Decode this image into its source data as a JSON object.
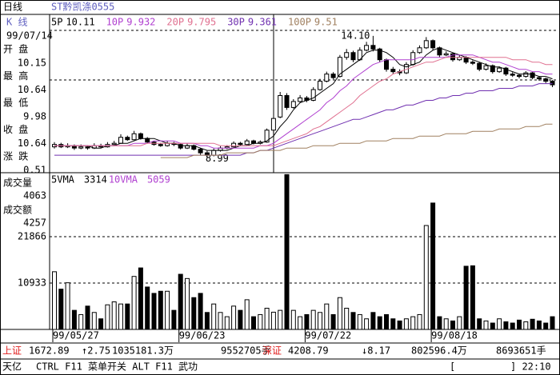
{
  "header": {
    "period": "日线",
    "security": "ST黔凯涤0555",
    "k_label": "K  线"
  },
  "cursor": {
    "date": "99/07/14",
    "fields": [
      {
        "label": "开  盘",
        "value": "10.15"
      },
      {
        "label": "最  高",
        "value": "10.64"
      },
      {
        "label": "最  低",
        "value": "9.98"
      },
      {
        "label": "收  盘",
        "value": "10.64"
      },
      {
        "label": "涨  跌",
        "value": "0.51"
      }
    ],
    "volume_label": "成交量",
    "volume": "4063",
    "amount_label": "成交额",
    "amount": "4257"
  },
  "chart_data": {
    "type": "candlestick",
    "categories": [
      "99/05/27",
      null,
      null,
      null,
      null,
      null,
      null,
      null,
      null,
      null,
      null,
      null,
      null,
      null,
      null,
      null,
      null,
      null,
      null,
      "99/06/23",
      null,
      null,
      null,
      null,
      null,
      null,
      null,
      null,
      null,
      null,
      null,
      null,
      null,
      null,
      null,
      null,
      null,
      null,
      "99/07/22",
      null,
      null,
      null,
      null,
      null,
      null,
      null,
      null,
      null,
      null,
      null,
      null,
      null,
      null,
      null,
      null,
      null,
      null,
      "99/08/18",
      null,
      null,
      null,
      null,
      null,
      null,
      null,
      null,
      null,
      null,
      null,
      null,
      null,
      null,
      null,
      null,
      null,
      null
    ],
    "ohlc": [
      [
        9.45,
        9.65,
        9.38,
        9.55
      ],
      [
        9.55,
        9.62,
        9.4,
        9.45
      ],
      [
        9.45,
        9.6,
        9.4,
        9.5
      ],
      [
        9.5,
        9.55,
        9.32,
        9.4
      ],
      [
        9.4,
        9.55,
        9.35,
        9.45
      ],
      [
        9.45,
        9.52,
        9.33,
        9.4
      ],
      [
        9.4,
        9.6,
        9.36,
        9.5
      ],
      [
        9.5,
        9.58,
        9.4,
        9.45
      ],
      [
        9.45,
        9.65,
        9.42,
        9.55
      ],
      [
        9.55,
        9.7,
        9.5,
        9.6
      ],
      [
        9.6,
        9.98,
        9.58,
        9.85
      ],
      [
        9.85,
        9.92,
        9.7,
        9.75
      ],
      [
        9.75,
        10.12,
        9.72,
        10.0
      ],
      [
        10.0,
        10.05,
        9.75,
        9.8
      ],
      [
        9.8,
        9.86,
        9.6,
        9.65
      ],
      [
        9.65,
        9.7,
        9.5,
        9.55
      ],
      [
        9.55,
        9.62,
        9.45,
        9.5
      ],
      [
        9.5,
        9.7,
        9.46,
        9.6
      ],
      [
        9.6,
        9.66,
        9.48,
        9.55
      ],
      [
        9.55,
        9.6,
        9.34,
        9.4
      ],
      [
        9.4,
        9.6,
        9.36,
        9.5
      ],
      [
        9.5,
        9.55,
        9.3,
        9.35
      ],
      [
        9.35,
        9.4,
        9.12,
        9.2
      ],
      [
        9.2,
        9.28,
        8.99,
        9.1
      ],
      [
        9.1,
        9.38,
        9.05,
        9.3
      ],
      [
        9.3,
        9.48,
        9.25,
        9.4
      ],
      [
        9.4,
        9.52,
        9.35,
        9.45
      ],
      [
        9.45,
        9.68,
        9.42,
        9.6
      ],
      [
        9.6,
        9.66,
        9.48,
        9.55
      ],
      [
        9.55,
        9.78,
        9.52,
        9.7
      ],
      [
        9.7,
        9.75,
        9.55,
        9.6
      ],
      [
        9.6,
        9.72,
        9.55,
        9.65
      ],
      [
        9.65,
        10.22,
        9.62,
        10.15
      ],
      [
        10.15,
        10.64,
        9.98,
        10.64
      ],
      [
        10.7,
        11.75,
        10.65,
        11.6
      ],
      [
        11.6,
        11.7,
        11.0,
        11.1
      ],
      [
        11.1,
        11.45,
        11.05,
        11.35
      ],
      [
        11.35,
        11.62,
        11.3,
        11.5
      ],
      [
        11.5,
        11.58,
        11.32,
        11.4
      ],
      [
        11.4,
        11.95,
        11.36,
        11.85
      ],
      [
        11.85,
        12.3,
        11.8,
        12.2
      ],
      [
        12.2,
        12.6,
        12.15,
        12.5
      ],
      [
        12.5,
        12.58,
        12.28,
        12.35
      ],
      [
        12.4,
        13.3,
        12.35,
        13.2
      ],
      [
        13.2,
        13.55,
        13.1,
        13.4
      ],
      [
        13.4,
        13.48,
        13.0,
        13.1
      ],
      [
        13.1,
        13.62,
        13.05,
        13.5
      ],
      [
        13.5,
        13.85,
        13.45,
        13.7
      ],
      [
        13.7,
        14.1,
        13.45,
        13.55
      ],
      [
        13.55,
        13.6,
        13.0,
        13.1
      ],
      [
        13.1,
        13.15,
        12.6,
        12.7
      ],
      [
        12.7,
        12.8,
        12.5,
        12.6
      ],
      [
        12.6,
        12.7,
        12.45,
        12.55
      ],
      [
        12.55,
        13.0,
        12.5,
        12.9
      ],
      [
        12.9,
        13.5,
        12.85,
        13.4
      ],
      [
        13.4,
        13.7,
        13.35,
        13.6
      ],
      [
        13.6,
        14.05,
        13.55,
        13.9
      ],
      [
        13.9,
        13.95,
        13.5,
        13.6
      ],
      [
        13.6,
        13.65,
        13.2,
        13.3
      ],
      [
        13.3,
        13.45,
        13.25,
        13.35
      ],
      [
        13.35,
        13.4,
        13.02,
        13.1
      ],
      [
        13.1,
        13.3,
        13.05,
        13.2
      ],
      [
        13.2,
        13.25,
        12.92,
        13.0
      ],
      [
        13.0,
        13.08,
        12.88,
        12.95
      ],
      [
        12.95,
        13.0,
        12.62,
        12.7
      ],
      [
        12.7,
        12.95,
        12.65,
        12.85
      ],
      [
        12.85,
        12.9,
        12.52,
        12.6
      ],
      [
        12.6,
        12.82,
        12.55,
        12.75
      ],
      [
        12.75,
        12.8,
        12.42,
        12.5
      ],
      [
        12.5,
        12.58,
        12.38,
        12.45
      ],
      [
        12.45,
        12.5,
        12.32,
        12.4
      ],
      [
        12.4,
        12.62,
        12.35,
        12.55
      ],
      [
        12.55,
        12.6,
        12.28,
        12.35
      ],
      [
        12.35,
        12.42,
        12.22,
        12.3
      ],
      [
        12.3,
        12.35,
        12.12,
        12.2
      ],
      [
        12.2,
        12.25,
        11.95,
        12.05
      ]
    ],
    "ylim": [
      8.4,
      15.0
    ],
    "high_label": "14.10",
    "low_label": "8.99",
    "series": [
      {
        "name": "5P",
        "legend_value": "10.11",
        "color": "#000000",
        "values": [
          9.5,
          9.5,
          9.5,
          9.5,
          9.5,
          9.5,
          9.4,
          9.4,
          9.5,
          9.5,
          9.6,
          9.6,
          9.7,
          9.8,
          9.8,
          9.8,
          9.7,
          9.6,
          9.6,
          9.5,
          9.5,
          9.5,
          9.4,
          9.3,
          9.3,
          9.3,
          9.3,
          9.4,
          9.5,
          9.5,
          9.6,
          9.6,
          9.7,
          9.9,
          10.3,
          10.6,
          11.0,
          11.3,
          11.4,
          11.5,
          11.7,
          11.9,
          12.1,
          12.5,
          12.7,
          12.9,
          13.1,
          13.4,
          13.5,
          13.5,
          13.4,
          13.2,
          12.9,
          12.8,
          12.9,
          13.0,
          13.3,
          13.5,
          13.6,
          13.5,
          13.4,
          13.3,
          13.2,
          13.1,
          13.0,
          12.9,
          12.8,
          12.8,
          12.7,
          12.6,
          12.5,
          12.5,
          12.5,
          12.4,
          12.4,
          12.3
        ]
      },
      {
        "name": "10P",
        "legend_value": "9.932",
        "color": "#b040d0",
        "values": [
          9.5,
          9.5,
          9.5,
          9.5,
          9.5,
          9.5,
          9.5,
          9.5,
          9.5,
          9.5,
          9.5,
          9.5,
          9.6,
          9.6,
          9.6,
          9.7,
          9.7,
          9.7,
          9.7,
          9.6,
          9.6,
          9.6,
          9.5,
          9.5,
          9.4,
          9.4,
          9.4,
          9.4,
          9.4,
          9.4,
          9.4,
          9.5,
          9.5,
          9.6,
          9.8,
          10.0,
          10.2,
          10.4,
          10.6,
          10.8,
          11.0,
          11.3,
          11.5,
          11.8,
          12.0,
          12.3,
          12.5,
          12.7,
          12.9,
          13.0,
          13.1,
          13.1,
          13.1,
          13.1,
          13.1,
          13.2,
          13.2,
          13.2,
          13.2,
          13.2,
          13.3,
          13.3,
          13.3,
          13.3,
          13.2,
          13.1,
          13.0,
          13.0,
          12.9,
          12.8,
          12.7,
          12.7,
          12.6,
          12.6,
          12.5,
          12.5
        ]
      },
      {
        "name": "20P",
        "legend_value": "9.795",
        "color": "#e07090",
        "values": [
          9.5,
          9.5,
          9.5,
          9.5,
          9.5,
          9.5,
          9.5,
          9.5,
          9.5,
          9.5,
          9.5,
          9.5,
          9.5,
          9.5,
          9.6,
          9.6,
          9.6,
          9.6,
          9.6,
          9.6,
          9.6,
          9.6,
          9.6,
          9.6,
          9.6,
          9.5,
          9.5,
          9.5,
          9.5,
          9.5,
          9.5,
          9.5,
          9.5,
          9.5,
          9.6,
          9.7,
          9.8,
          9.9,
          10.0,
          10.2,
          10.3,
          10.5,
          10.7,
          10.9,
          11.1,
          11.3,
          11.6,
          11.8,
          12.0,
          12.2,
          12.3,
          12.5,
          12.6,
          12.7,
          12.8,
          12.9,
          13.0,
          13.0,
          13.1,
          13.2,
          13.2,
          13.2,
          13.2,
          13.2,
          13.2,
          13.2,
          13.2,
          13.2,
          13.2,
          13.1,
          13.1,
          13.1,
          13.0,
          13.0,
          12.9,
          12.9
        ]
      },
      {
        "name": "30P",
        "legend_value": "9.361",
        "color": "#7030b0",
        "values": [
          9.1,
          9.1,
          9.1,
          9.1,
          9.1,
          9.1,
          9.1,
          9.1,
          9.1,
          9.1,
          9.1,
          9.1,
          9.1,
          9.1,
          9.1,
          9.1,
          9.1,
          9.1,
          9.1,
          9.1,
          9.1,
          9.1,
          9.1,
          9.1,
          9.1,
          9.1,
          9.1,
          9.1,
          9.1,
          9.2,
          9.2,
          9.3,
          9.3,
          9.4,
          9.5,
          9.6,
          9.7,
          9.8,
          9.9,
          10.0,
          10.1,
          10.2,
          10.3,
          10.4,
          10.5,
          10.6,
          10.6,
          10.7,
          10.8,
          10.9,
          11.0,
          11.0,
          11.1,
          11.2,
          11.2,
          11.3,
          11.4,
          11.4,
          11.5,
          11.5,
          11.6,
          11.6,
          11.7,
          11.7,
          11.8,
          11.8,
          11.8,
          11.9,
          11.9,
          11.9,
          12.0,
          12.0,
          12.0,
          12.1,
          12.1,
          12.1
        ]
      },
      {
        "name": "100P",
        "legend_value": "9.51",
        "color": "#a08060",
        "values": [
          null,
          null,
          null,
          null,
          null,
          null,
          null,
          null,
          null,
          null,
          null,
          null,
          null,
          null,
          null,
          null,
          9.0,
          9.0,
          9.0,
          9.0,
          9.0,
          9.1,
          9.1,
          9.1,
          9.1,
          9.1,
          9.2,
          9.2,
          9.2,
          9.2,
          9.2,
          9.3,
          9.3,
          9.3,
          9.3,
          9.4,
          9.4,
          9.4,
          9.4,
          9.5,
          9.5,
          9.5,
          9.5,
          9.6,
          9.6,
          9.6,
          9.6,
          9.7,
          9.7,
          9.7,
          9.7,
          9.8,
          9.8,
          9.8,
          9.8,
          9.9,
          9.9,
          9.9,
          9.9,
          10.0,
          10.0,
          10.0,
          10.0,
          10.1,
          10.1,
          10.1,
          10.1,
          10.2,
          10.2,
          10.2,
          10.2,
          10.3,
          10.3,
          10.3,
          10.4,
          10.4
        ]
      }
    ],
    "volume": {
      "values": [
        13600,
        9500,
        11000,
        4500,
        3500,
        5500,
        4000,
        2500,
        5800,
        6500,
        6000,
        6000,
        12500,
        14500,
        10000,
        8500,
        9000,
        9000,
        4500,
        13000,
        12000,
        7500,
        8500,
        4000,
        6000,
        4000,
        3000,
        5500,
        4500,
        7000,
        3000,
        3500,
        5000,
        4063,
        4500,
        36500,
        4500,
        3000,
        3500,
        4500,
        4000,
        6000,
        3500,
        7500,
        5000,
        4000,
        3500,
        2500,
        4000,
        3000,
        3500,
        2500,
        2000,
        2500,
        3000,
        3500,
        24500,
        29800,
        3000,
        2500,
        2000,
        3000,
        14900,
        15000,
        2500,
        2000,
        1500,
        2500,
        1800,
        1500,
        2200,
        1800,
        2400,
        2000,
        1500,
        3000
      ],
      "ylim": [
        0,
        36760
      ],
      "yticks": [
        10933,
        21866
      ],
      "legend": [
        {
          "name": "5VMA",
          "value": "3314",
          "color": "#000000"
        },
        {
          "name": "10VMA",
          "value": "5059",
          "color": "#b040d0"
        }
      ]
    }
  },
  "status": {
    "row1": [
      {
        "text": "上证",
        "red": true
      },
      {
        "text": "1672.89"
      },
      {
        "text": "↑2.75"
      },
      {
        "text": "1035181.3万"
      },
      {
        "text": "9552705手"
      },
      {
        "text": "深证",
        "red": true
      },
      {
        "text": "4208.79"
      },
      {
        "text": "↓8.17"
      },
      {
        "text": "802596.4万"
      },
      {
        "text": "8693651手"
      }
    ],
    "row2": [
      "天亿",
      "CTRL F11 菜单开关 ALT F11 武功",
      "[",
      "] 22:10"
    ]
  }
}
